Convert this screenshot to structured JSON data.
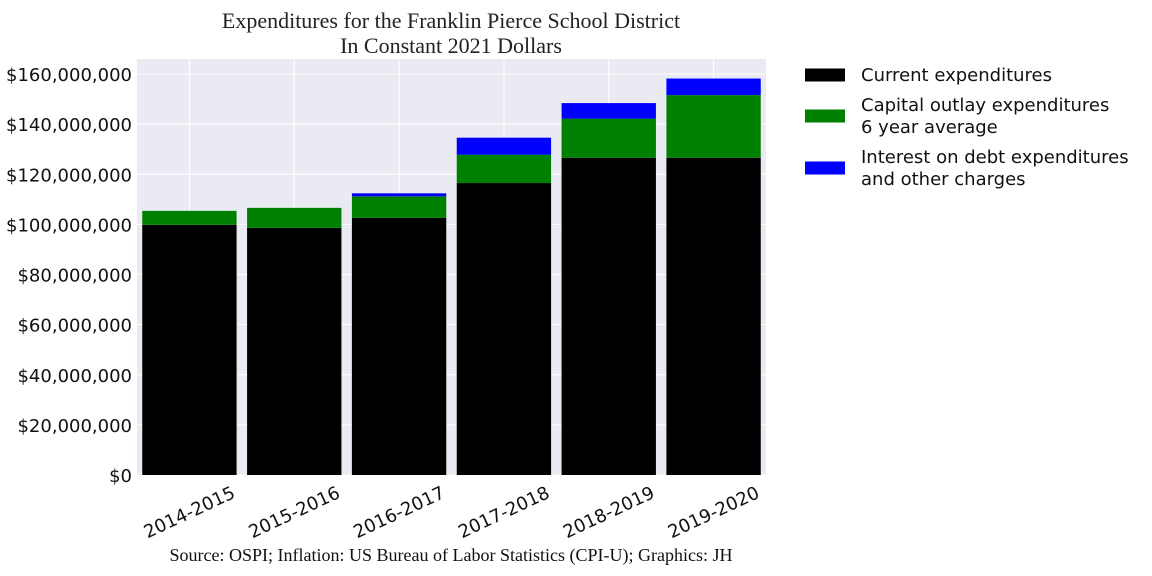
{
  "chart_data": {
    "type": "bar",
    "stacked": true,
    "title": "Expenditures for the Franklin Pierce School District",
    "subtitle": "In Constant 2021 Dollars",
    "source": "Source: OSPI; Inflation: US Bureau of Labor Statistics (CPI-U); Graphics: JH",
    "xlabel": "",
    "ylabel": "",
    "ylim": [
      0,
      166000000
    ],
    "yticks": [
      0,
      20000000,
      40000000,
      60000000,
      80000000,
      100000000,
      120000000,
      140000000,
      160000000
    ],
    "ytick_labels": [
      "$0",
      "$20,000,000",
      "$40,000,000",
      "$60,000,000",
      "$80,000,000",
      "$100,000,000",
      "$120,000,000",
      "$140,000,000",
      "$160,000,000"
    ],
    "categories": [
      "2014-2015",
      "2015-2016",
      "2016-2017",
      "2017-2018",
      "2018-2019",
      "2019-2020"
    ],
    "series": [
      {
        "name": "Current expenditures",
        "color": "#000000",
        "values": [
          99800000,
          98600000,
          102600000,
          116500000,
          126600000,
          126600000
        ]
      },
      {
        "name": "Capital outlay expenditures\n6 year average",
        "color": "#008000",
        "values": [
          5600000,
          8000000,
          8600000,
          11300000,
          15600000,
          25000000
        ]
      },
      {
        "name": "Interest on debt expenditures\nand other charges",
        "color": "#0000ff",
        "values": [
          0,
          0,
          1200000,
          6800000,
          6200000,
          6600000
        ]
      }
    ],
    "grid": true,
    "legend_position": "right"
  }
}
